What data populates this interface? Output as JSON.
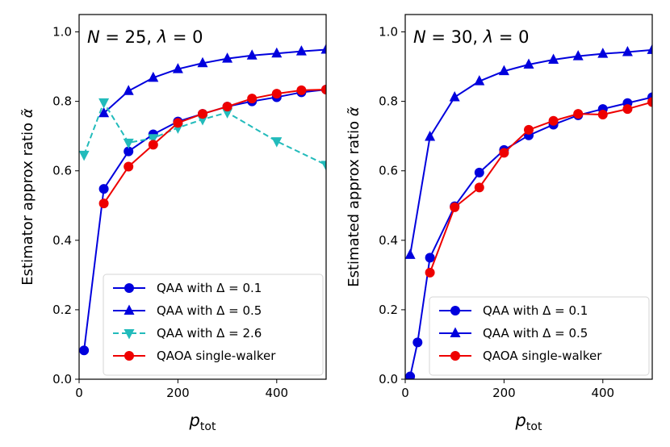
{
  "chart_data": [
    {
      "type": "line",
      "title_N": "25",
      "title_lambda": "0",
      "xlabel_main": "p",
      "xlabel_sub": "tot",
      "ylabel": "Estimator approx ratio",
      "ylabel_symbol": "α̃",
      "xlim": [
        0,
        500
      ],
      "ylim": [
        0.0,
        1.05
      ],
      "xticks": [
        0,
        200,
        400
      ],
      "yticks": [
        0.0,
        0.2,
        0.4,
        0.6,
        0.8,
        1.0
      ],
      "legend_position": "lower-right",
      "series": [
        {
          "name": "QAA with Δ = 0.1",
          "legend_prefix": "QAA with ",
          "legend_delta": "0.1",
          "color": "#0000dd",
          "marker": "circle",
          "dashed": false,
          "x": [
            10,
            50,
            100,
            150,
            200,
            250,
            300,
            350,
            400,
            450,
            500
          ],
          "y": [
            0.083,
            0.548,
            0.656,
            0.705,
            0.742,
            0.764,
            0.785,
            0.8,
            0.812,
            0.826,
            0.834
          ]
        },
        {
          "name": "QAA with Δ = 0.5",
          "legend_prefix": "QAA with ",
          "legend_delta": "0.5",
          "color": "#0000dd",
          "marker": "triangle-up",
          "dashed": false,
          "x": [
            50,
            100,
            150,
            200,
            250,
            300,
            350,
            400,
            450,
            500
          ],
          "y": [
            0.766,
            0.83,
            0.868,
            0.893,
            0.91,
            0.923,
            0.932,
            0.938,
            0.944,
            0.949
          ]
        },
        {
          "name": "QAA with Δ = 2.6",
          "legend_prefix": "QAA with ",
          "legend_delta": "2.6",
          "color": "#22bbbb",
          "marker": "triangle-down",
          "dashed": true,
          "x": [
            10,
            50,
            100,
            150,
            200,
            250,
            300,
            400,
            500
          ],
          "y": [
            0.646,
            0.797,
            0.681,
            0.694,
            0.724,
            0.748,
            0.768,
            0.685,
            0.617
          ]
        },
        {
          "name": "QAOA single-walker",
          "legend_prefix": "",
          "legend_delta": "",
          "label": "QAOA single-walker",
          "color": "#ee0000",
          "marker": "circle",
          "dashed": false,
          "x": [
            50,
            100,
            150,
            200,
            250,
            300,
            350,
            400,
            450,
            500
          ],
          "y": [
            0.506,
            0.612,
            0.675,
            0.738,
            0.764,
            0.785,
            0.808,
            0.822,
            0.832,
            0.834
          ]
        }
      ]
    },
    {
      "type": "line",
      "title_N": "30",
      "title_lambda": "0",
      "xlabel_main": "p",
      "xlabel_sub": "tot",
      "ylabel": "Estimated approx ratio",
      "ylabel_symbol": "α̃",
      "xlim": [
        0,
        500
      ],
      "ylim": [
        0.0,
        1.05
      ],
      "xticks": [
        0,
        200,
        400
      ],
      "yticks": [
        0.0,
        0.2,
        0.4,
        0.6,
        0.8,
        1.0
      ],
      "legend_position": "lower-right",
      "series": [
        {
          "name": "QAA with Δ = 0.1",
          "legend_prefix": "QAA with ",
          "legend_delta": "0.1",
          "color": "#0000dd",
          "marker": "circle",
          "dashed": false,
          "x": [
            10,
            25,
            50,
            100,
            150,
            200,
            250,
            300,
            350,
            400,
            450,
            500
          ],
          "y": [
            0.008,
            0.106,
            0.35,
            0.498,
            0.595,
            0.66,
            0.702,
            0.733,
            0.76,
            0.778,
            0.795,
            0.812
          ]
        },
        {
          "name": "QAA with Δ = 0.5",
          "legend_prefix": "QAA with ",
          "legend_delta": "0.5",
          "color": "#0000dd",
          "marker": "triangle-up",
          "dashed": false,
          "x": [
            10,
            50,
            100,
            150,
            200,
            250,
            300,
            350,
            400,
            450,
            500
          ],
          "y": [
            0.358,
            0.698,
            0.812,
            0.858,
            0.887,
            0.906,
            0.92,
            0.93,
            0.937,
            0.942,
            0.948
          ]
        },
        {
          "name": "QAOA single-walker",
          "legend_prefix": "",
          "legend_delta": "",
          "label": "QAOA single-walker",
          "color": "#ee0000",
          "marker": "circle",
          "dashed": false,
          "x": [
            50,
            100,
            150,
            200,
            250,
            300,
            350,
            400,
            450,
            500
          ],
          "y": [
            0.307,
            0.495,
            0.552,
            0.652,
            0.718,
            0.744,
            0.764,
            0.762,
            0.778,
            0.798
          ]
        }
      ]
    }
  ]
}
